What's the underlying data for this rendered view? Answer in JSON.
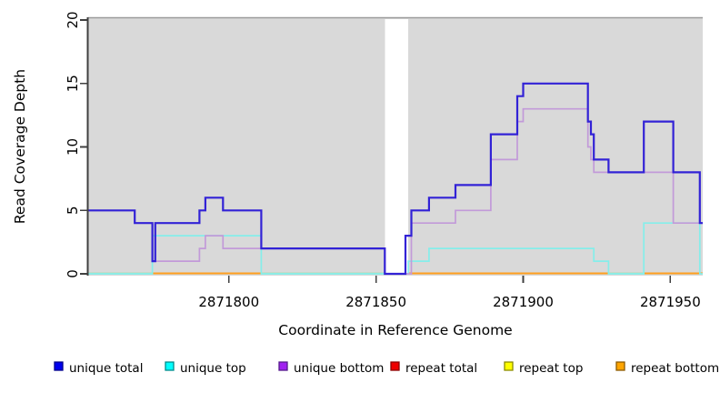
{
  "chart_data": {
    "type": "line",
    "subtype": "step-coverage-plot",
    "title": "",
    "xlabel": "Coordinate in Reference Genome",
    "ylabel": "Read Coverage Depth",
    "xlim": [
      2871752.2,
      2871961
    ],
    "ylim": [
      0,
      20
    ],
    "x_ticks": [
      2871800,
      2871850,
      2871900,
      2871950
    ],
    "y_ticks": [
      0,
      5,
      10,
      15,
      20
    ],
    "grid": false,
    "plot_bg_color": "#d9d9d9",
    "plot_top_border_color": "#9b9b9b",
    "axis_color": "#404040",
    "gap_region": {
      "x1": 2871853,
      "x2": 2871861,
      "color": "#ffffff",
      "note": "white no-data band"
    },
    "series": [
      {
        "name": "baseline green",
        "color": "#a9d8a9",
        "width": 1.7,
        "kind": "zero-segments",
        "segments": [
          [
            2871752.2,
            2871774
          ],
          [
            2871811,
            2871853
          ],
          [
            2871929,
            2871941
          ]
        ]
      },
      {
        "name": "repeat bottom",
        "color": "#ff9f1f",
        "width": 2,
        "kind": "zero-segments",
        "segments": [
          [
            2871774,
            2871811
          ],
          [
            2871861,
            2871929
          ],
          [
            2871941,
            2871961
          ]
        ]
      },
      {
        "name": "unique top",
        "color": "#85eeea",
        "width": 1.7,
        "kind": "step",
        "points": [
          [
            2871752.2,
            0
          ],
          [
            2871774,
            3
          ],
          [
            2871811,
            0
          ],
          [
            2871861,
            1
          ],
          [
            2871868,
            2
          ],
          [
            2871924,
            1
          ],
          [
            2871929,
            0
          ],
          [
            2871941,
            4
          ],
          [
            2871960,
            0
          ],
          [
            2871961,
            0
          ]
        ]
      },
      {
        "name": "unique bottom",
        "color": "#c29ad9",
        "width": 1.7,
        "kind": "step",
        "points": [
          [
            2871752.2,
            5
          ],
          [
            2871768,
            4
          ],
          [
            2871774,
            1
          ],
          [
            2871790,
            2
          ],
          [
            2871792,
            3
          ],
          [
            2871798,
            2
          ],
          [
            2871853,
            0
          ],
          [
            2871862,
            4
          ],
          [
            2871877,
            5
          ],
          [
            2871889,
            9
          ],
          [
            2871898,
            12
          ],
          [
            2871900,
            13
          ],
          [
            2871922,
            10
          ],
          [
            2871923,
            9
          ],
          [
            2871924,
            8
          ],
          [
            2871951,
            4
          ],
          [
            2871961,
            4
          ]
        ]
      },
      {
        "name": "unique total",
        "color": "#3222d6",
        "width": 2.2,
        "kind": "step",
        "points": [
          [
            2871752.2,
            5
          ],
          [
            2871768,
            4
          ],
          [
            2871774,
            1
          ],
          [
            2871775,
            4
          ],
          [
            2871790,
            5
          ],
          [
            2871792,
            6
          ],
          [
            2871798,
            5
          ],
          [
            2871811,
            2
          ],
          [
            2871853,
            0
          ],
          [
            2871860,
            3
          ],
          [
            2871862,
            5
          ],
          [
            2871868,
            6
          ],
          [
            2871877,
            7
          ],
          [
            2871889,
            11
          ],
          [
            2871898,
            14
          ],
          [
            2871900,
            15
          ],
          [
            2871922,
            12
          ],
          [
            2871923,
            11
          ],
          [
            2871924,
            9
          ],
          [
            2871929,
            8
          ],
          [
            2871941,
            12
          ],
          [
            2871951,
            8
          ],
          [
            2871960,
            4
          ],
          [
            2871961,
            4
          ]
        ]
      }
    ],
    "legend_position": "bottom",
    "legend": [
      {
        "label": "unique total",
        "fill": "#0000ee",
        "border": "#00008b"
      },
      {
        "label": "unique top",
        "fill": "#00ffff",
        "border": "#008b8b"
      },
      {
        "label": "unique bottom",
        "fill": "#a020f0",
        "border": "#551a8b"
      },
      {
        "label": "repeat total",
        "fill": "#ee0000",
        "border": "#8b0000"
      },
      {
        "label": "repeat top",
        "fill": "#ffff00",
        "border": "#8b8b00"
      },
      {
        "label": "repeat bottom",
        "fill": "#ffa500",
        "border": "#8b5a00"
      }
    ]
  }
}
